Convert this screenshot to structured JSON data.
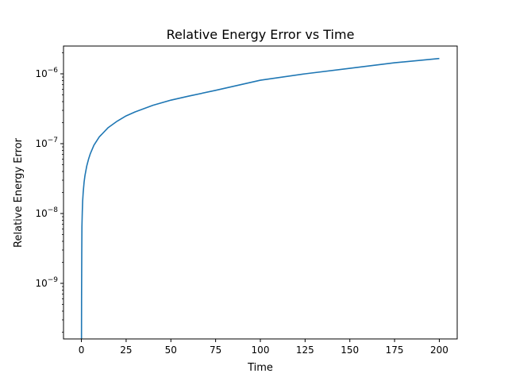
{
  "chart_data": {
    "type": "line",
    "title": "Relative Energy Error vs Time",
    "xlabel": "Time",
    "ylabel": "Relative Energy Error",
    "y_scale": "log",
    "x_range": [
      -10,
      210
    ],
    "y_range": [
      1.6e-10,
      2.5e-06
    ],
    "x_ticks": [
      0,
      25,
      50,
      75,
      100,
      125,
      150,
      175,
      200
    ],
    "y_ticks": [
      {
        "value": 1e-09,
        "base": "10",
        "exp": "−9"
      },
      {
        "value": 1e-08,
        "base": "10",
        "exp": "−8"
      },
      {
        "value": 1e-07,
        "base": "10",
        "exp": "−7"
      },
      {
        "value": 1e-06,
        "base": "10",
        "exp": "−6"
      }
    ],
    "grid": false,
    "legend": "none",
    "series": [
      {
        "color": "#1f77b4",
        "x": [
          0.05,
          0.1,
          0.2,
          0.3,
          0.5,
          0.7,
          1,
          1.5,
          2,
          3,
          4,
          5,
          7,
          10,
          15,
          20,
          25,
          30,
          40,
          50,
          60,
          75,
          100,
          125,
          150,
          175,
          200
        ],
        "y": [
          1.6e-10,
          6.5e-10,
          2.6e-09,
          6.5e-09,
          1.05e-08,
          1.5e-08,
          2e-08,
          2.8e-08,
          3.5e-08,
          4.8e-08,
          6e-08,
          7.2e-08,
          9.5e-08,
          1.25e-07,
          1.7e-07,
          2.1e-07,
          2.5e-07,
          2.85e-07,
          3.55e-07,
          4.2e-07,
          4.8e-07,
          5.8e-07,
          8.1e-07,
          1e-06,
          1.2e-06,
          1.44e-06,
          1.66e-06
        ]
      }
    ]
  }
}
